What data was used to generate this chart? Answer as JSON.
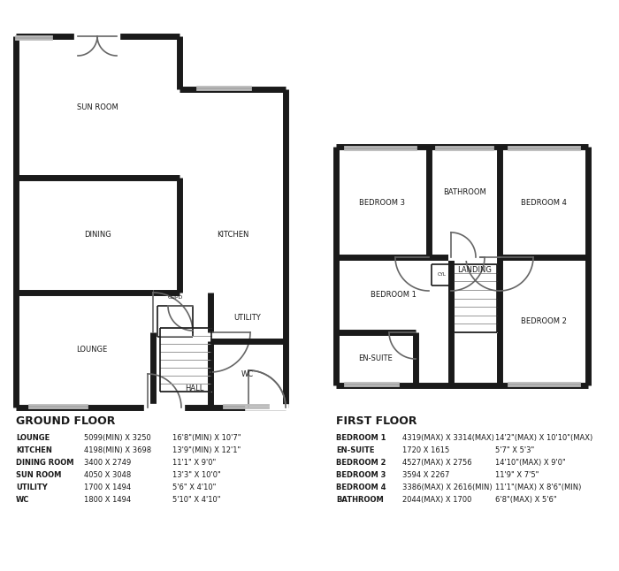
{
  "bg_color": "#ffffff",
  "wall_color": "#1a1a1a",
  "wall_lw": 5,
  "thin_lw": 1.2,
  "door_color": "#666666",
  "text_color": "#1a1a1a",
  "label_fontsize": 6.0,
  "header_fontsize": 9.0,
  "dim_fontsize": 6.0,
  "ground_floor_label": "GROUND FLOOR",
  "first_floor_label": "FIRST FLOOR",
  "gf_rooms": [
    {
      "name": "LOUNGE",
      "dim1": "5099(MIN) X 3250",
      "dim2": "16'8\"(MIN) X 10'7\""
    },
    {
      "name": "KITCHEN",
      "dim1": "4198(MIN) X 3698",
      "dim2": "13'9\"(MIN) X 12'1\""
    },
    {
      "name": "DINING ROOM",
      "dim1": "3400 X 2749",
      "dim2": "11'1\" X 9'0\""
    },
    {
      "name": "SUN ROOM",
      "dim1": "4050 X 3048",
      "dim2": "13'3\" X 10'0\""
    },
    {
      "name": "UTILITY",
      "dim1": "1700 X 1494",
      "dim2": "5'6\" X 4'10\""
    },
    {
      "name": "WC",
      "dim1": "1800 X 1494",
      "dim2": "5'10\" X 4'10\""
    }
  ],
  "ff_rooms": [
    {
      "name": "BEDROOM 1",
      "dim1": "4319(MAX) X 3314(MAX)",
      "dim2": "14'2\"(MAX) X 10'10\"(MAX)"
    },
    {
      "name": "EN-SUITE",
      "dim1": "1720 X 1615",
      "dim2": "5'7\" X 5'3\""
    },
    {
      "name": "BEDROOM 2",
      "dim1": "4527(MAX) X 2756",
      "dim2": "14'10\"(MAX) X 9'0\""
    },
    {
      "name": "BEDROOM 3",
      "dim1": "3594 X 2267",
      "dim2": "11'9\" X 7'5\""
    },
    {
      "name": "BEDROOM 4",
      "dim1": "3386(MAX) X 2616(MIN)",
      "dim2": "11'1\"(MAX) X 8'6\"(MIN)"
    },
    {
      "name": "BATHROOM",
      "dim1": "2044(MAX) X 1700",
      "dim2": "6'8\"(MAX) X 5'6\""
    }
  ]
}
